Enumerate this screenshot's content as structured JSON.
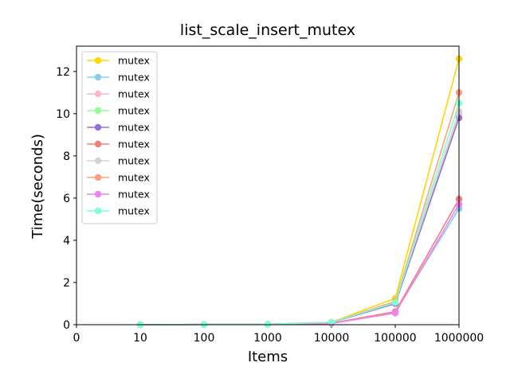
{
  "chart_data": {
    "type": "line",
    "title": "list_scale_insert_mutex",
    "xlabel": "Items",
    "ylabel": "Time(seconds)",
    "x_tick_labels": [
      "0",
      "10",
      "100",
      "1000",
      "10000",
      "100000",
      "1000000"
    ],
    "categories": [
      "10",
      "100",
      "1000",
      "10000",
      "100000",
      "1000000"
    ],
    "y_ticks": [
      "0",
      "2",
      "4",
      "6",
      "8",
      "10",
      "12"
    ],
    "ylim": [
      0,
      13.2
    ],
    "grid": false,
    "legend_position": "upper-left",
    "series": [
      {
        "name": "mutex",
        "color": "#FFD700",
        "values": [
          0.0,
          0.01,
          0.02,
          0.12,
          1.25,
          12.6
        ]
      },
      {
        "name": "mutex",
        "color": "#87CEEB",
        "values": [
          0.0,
          0.01,
          0.02,
          0.06,
          0.6,
          5.5
        ]
      },
      {
        "name": "mutex",
        "color": "#FFB6C1",
        "values": [
          0.0,
          0.01,
          0.02,
          0.11,
          1.1,
          10.0
        ]
      },
      {
        "name": "mutex",
        "color": "#98FB98",
        "values": [
          0.0,
          0.01,
          0.02,
          0.1,
          1.05,
          10.1
        ]
      },
      {
        "name": "mutex",
        "color": "#9370DB",
        "values": [
          0.0,
          0.01,
          0.02,
          0.1,
          1.0,
          9.8
        ]
      },
      {
        "name": "mutex",
        "color": "#F08080",
        "values": [
          0.0,
          0.01,
          0.02,
          0.07,
          0.62,
          5.95
        ]
      },
      {
        "name": "mutex",
        "color": "#D3D3D3",
        "values": [
          0.0,
          0.01,
          0.02,
          0.11,
          1.08,
          10.1
        ]
      },
      {
        "name": "mutex",
        "color": "#FFA07A",
        "values": [
          0.0,
          0.01,
          0.02,
          0.11,
          1.1,
          11.0
        ]
      },
      {
        "name": "mutex",
        "color": "#EE82EE",
        "values": [
          0.0,
          0.01,
          0.02,
          0.06,
          0.55,
          5.7
        ]
      },
      {
        "name": "mutex",
        "color": "#7FFFD4",
        "values": [
          0.0,
          0.01,
          0.02,
          0.11,
          1.05,
          10.5
        ]
      }
    ]
  }
}
